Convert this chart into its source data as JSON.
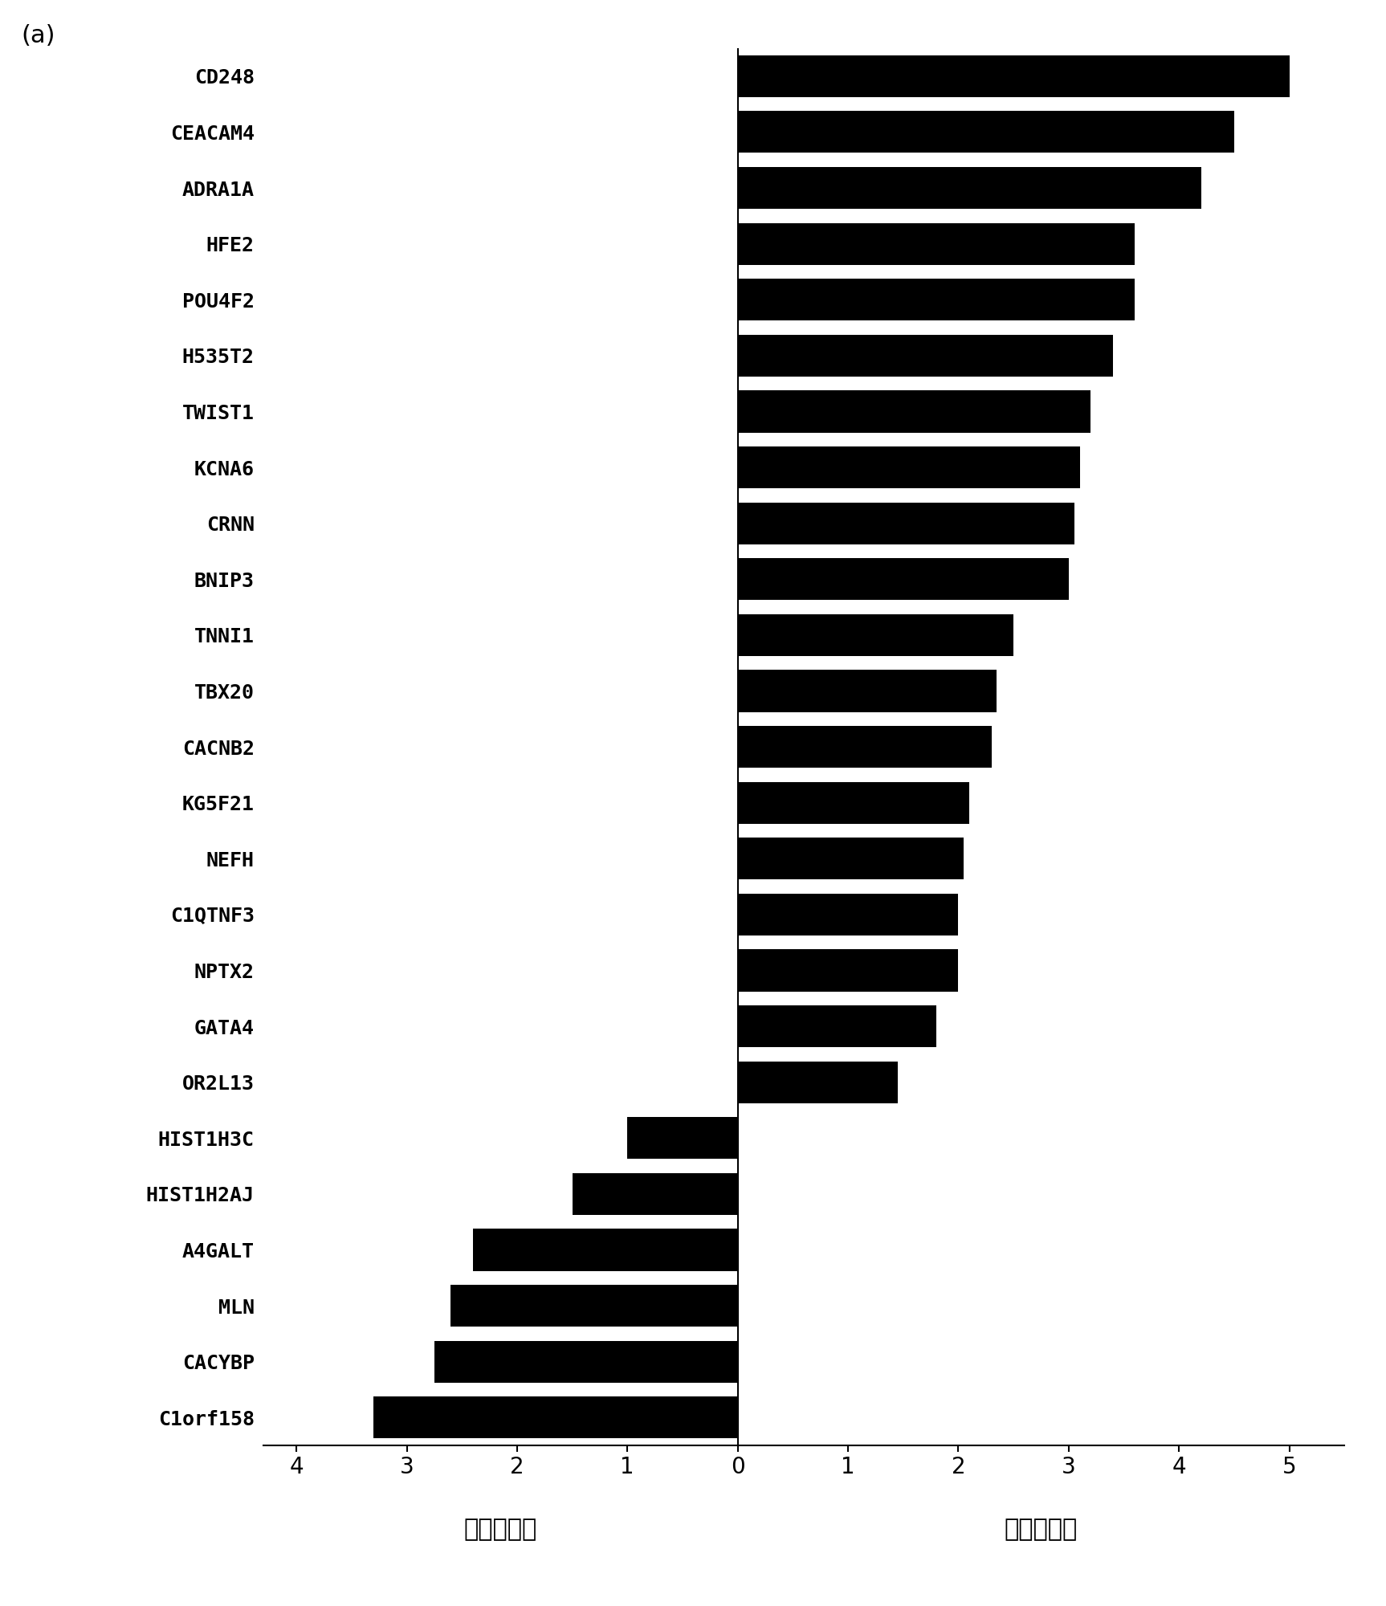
{
  "genes": [
    "CD248",
    "CEACAM4",
    "ADRA1A",
    "HFE2",
    "POU4F2",
    "H535T2",
    "TWIST1",
    "KCNA6",
    "CRNN",
    "BNIP3",
    "TNNI1",
    "TBX20",
    "CACNB2",
    "KG5F21",
    "NEFH",
    "C1QTNF3",
    "NPTX2",
    "GATA4",
    "OR2L13",
    "HIST1H3C",
    "HIST1H2AJ",
    "A4GALT",
    "MLN",
    "CACYBP",
    "C1orf158"
  ],
  "values": [
    5.0,
    4.5,
    4.2,
    3.6,
    3.6,
    3.4,
    3.2,
    3.1,
    3.05,
    3.0,
    2.5,
    2.35,
    2.3,
    2.1,
    2.05,
    2.0,
    2.0,
    1.8,
    1.45,
    -1.0,
    -1.5,
    -2.4,
    -2.6,
    -2.75,
    -3.3
  ],
  "xlim": [
    -4.3,
    5.5
  ],
  "xticks": [
    -4,
    -3,
    -2,
    -1,
    0,
    1,
    2,
    3,
    4,
    5
  ],
  "xlabel_left": "低度甲基化",
  "xlabel_right": "高度甲基化",
  "bar_color": "#000000",
  "background_color": "#ffffff",
  "panel_label": "(a)",
  "tick_fontsize": 20,
  "label_fontsize": 22,
  "gene_fontsize": 18,
  "bar_height": 0.75
}
